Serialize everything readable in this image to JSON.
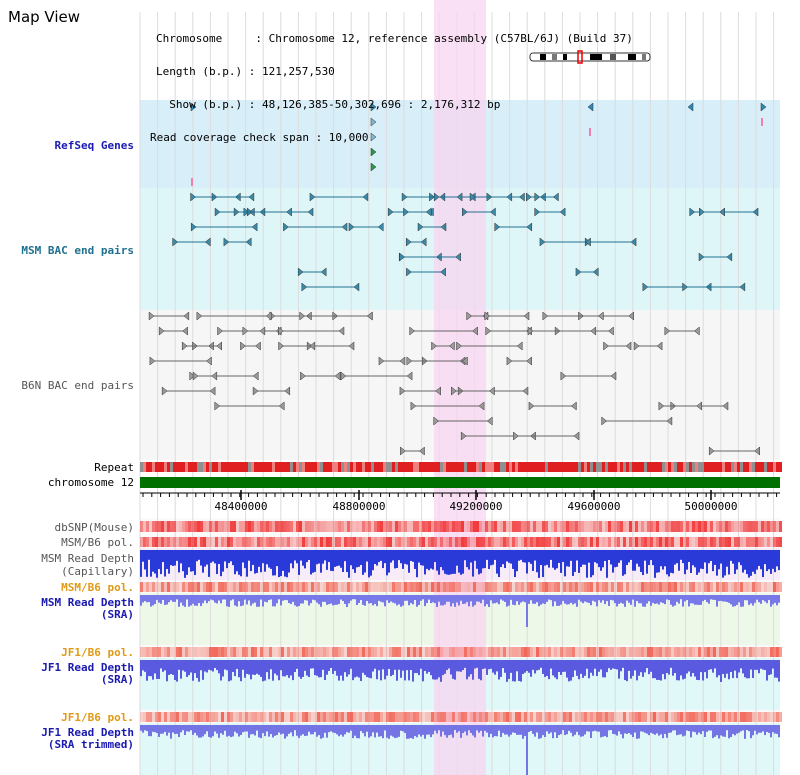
{
  "header": {
    "title": "Map View",
    "chromosome_label": "Chromosome     : Chromosome 12, reference assembly (C57BL/6J) (Build 37)",
    "length_label": "Length (b.p.) : 121,257,530",
    "show_label": "  Show (b.p.) : 48,126,385-50,302,696 : 2,176,312 bp",
    "span_label": "Read coverage check span : 10,000"
  },
  "tracks": {
    "refseq": "RefSeq Genes",
    "msm_bac": "MSM BAC end pairs",
    "b6n_bac": "B6N BAC end pairs",
    "repeat": "Repeat",
    "chromosome": "chromosome 12",
    "dbsnp": "dbSNP(Mouse)",
    "msm_pol": "MSM/B6 pol.",
    "msm_depth_cap_1": "MSM Read Depth",
    "msm_depth_cap_2": "(Capillary)",
    "msm_pol2": "MSM/B6 pol.",
    "msm_depth_sra_1": "MSM Read Depth",
    "msm_depth_sra_2": "(SRA)",
    "jf1_pol": "JF1/B6 pol.",
    "jf1_depth_1": "JF1 Read Depth",
    "jf1_depth_2": "(SRA)",
    "jf1_pol2": "JF1/B6 pol.",
    "jf1_trim_1": "JF1 Read Depth",
    "jf1_trim_2": "(SRA trimmed)"
  },
  "axis": {
    "ticks": [
      "48400000",
      "48800000",
      "49200000",
      "49600000",
      "50000000"
    ]
  },
  "colors": {
    "highlight": "#f8d6f0",
    "refseq_bg": "#d8eef8",
    "bac_bg": "#dff6f8",
    "chromosome_bar": "#007000",
    "depth_blue": "#2222dd",
    "teal": "#207090"
  }
}
